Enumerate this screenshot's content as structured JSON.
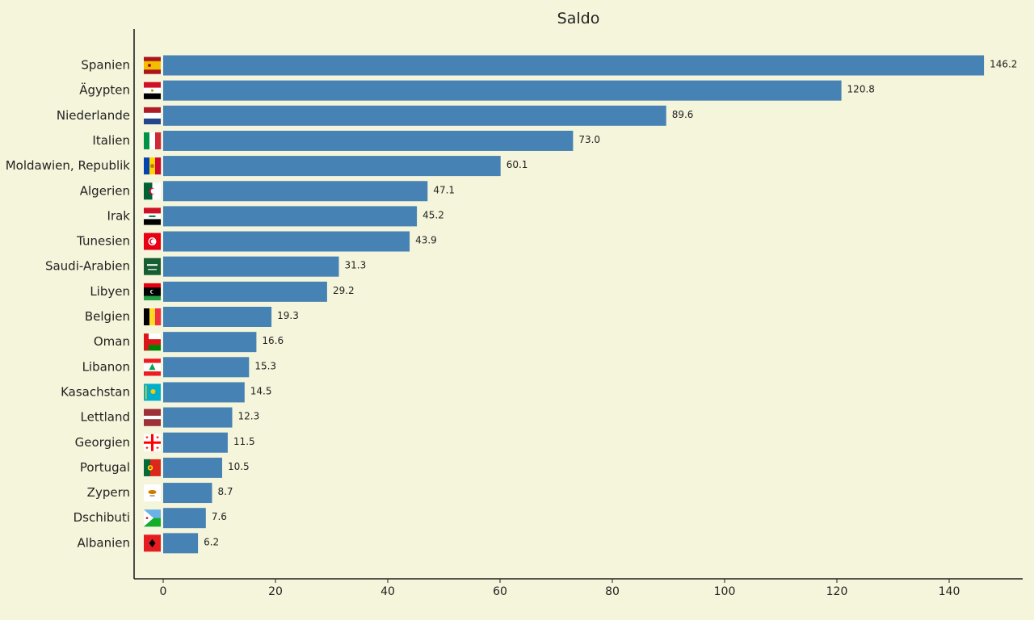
{
  "chart_data": {
    "type": "bar",
    "orientation": "horizontal",
    "title": "Saldo",
    "xlabel": "",
    "ylabel": "",
    "xlim": [
      -5.2,
      153
    ],
    "xticks": [
      0,
      20,
      40,
      60,
      80,
      100,
      120,
      140
    ],
    "grid": false,
    "categories": [
      "Spanien",
      "Ägypten",
      "Niederlande",
      "Italien",
      "Moldawien, Republik",
      "Algerien",
      "Irak",
      "Tunesien",
      "Saudi-Arabien",
      "Libyen",
      "Belgien",
      "Oman",
      "Libanon",
      "Kasachstan",
      "Lettland",
      "Georgien",
      "Portugal",
      "Zypern",
      "Dschibuti",
      "Albanien"
    ],
    "values": [
      146.2,
      120.8,
      89.6,
      73.0,
      60.1,
      47.1,
      45.2,
      43.9,
      31.3,
      29.2,
      19.3,
      16.6,
      15.3,
      14.5,
      12.3,
      11.5,
      10.5,
      8.7,
      7.6,
      6.2
    ],
    "value_labels": [
      "146.2",
      "120.8",
      "89.6",
      "73.0",
      "60.1",
      "47.1",
      "45.2",
      "43.9",
      "31.3",
      "29.2",
      "19.3",
      "16.6",
      "15.3",
      "14.5",
      "12.3",
      "11.5",
      "10.5",
      "8.7",
      "7.6",
      "6.2"
    ],
    "flags": [
      "spain-flag-icon",
      "egypt-flag-icon",
      "netherlands-flag-icon",
      "italy-flag-icon",
      "moldova-flag-icon",
      "algeria-flag-icon",
      "iraq-flag-icon",
      "tunisia-flag-icon",
      "saudi-arabia-flag-icon",
      "libya-flag-icon",
      "belgium-flag-icon",
      "oman-flag-icon",
      "lebanon-flag-icon",
      "kazakhstan-flag-icon",
      "latvia-flag-icon",
      "georgia-flag-icon",
      "portugal-flag-icon",
      "cyprus-flag-icon",
      "djibouti-flag-icon",
      "albania-flag-icon"
    ],
    "colors": {
      "bar": "#4682b4",
      "background": "#f5f5dc",
      "axis": "#222222"
    }
  }
}
